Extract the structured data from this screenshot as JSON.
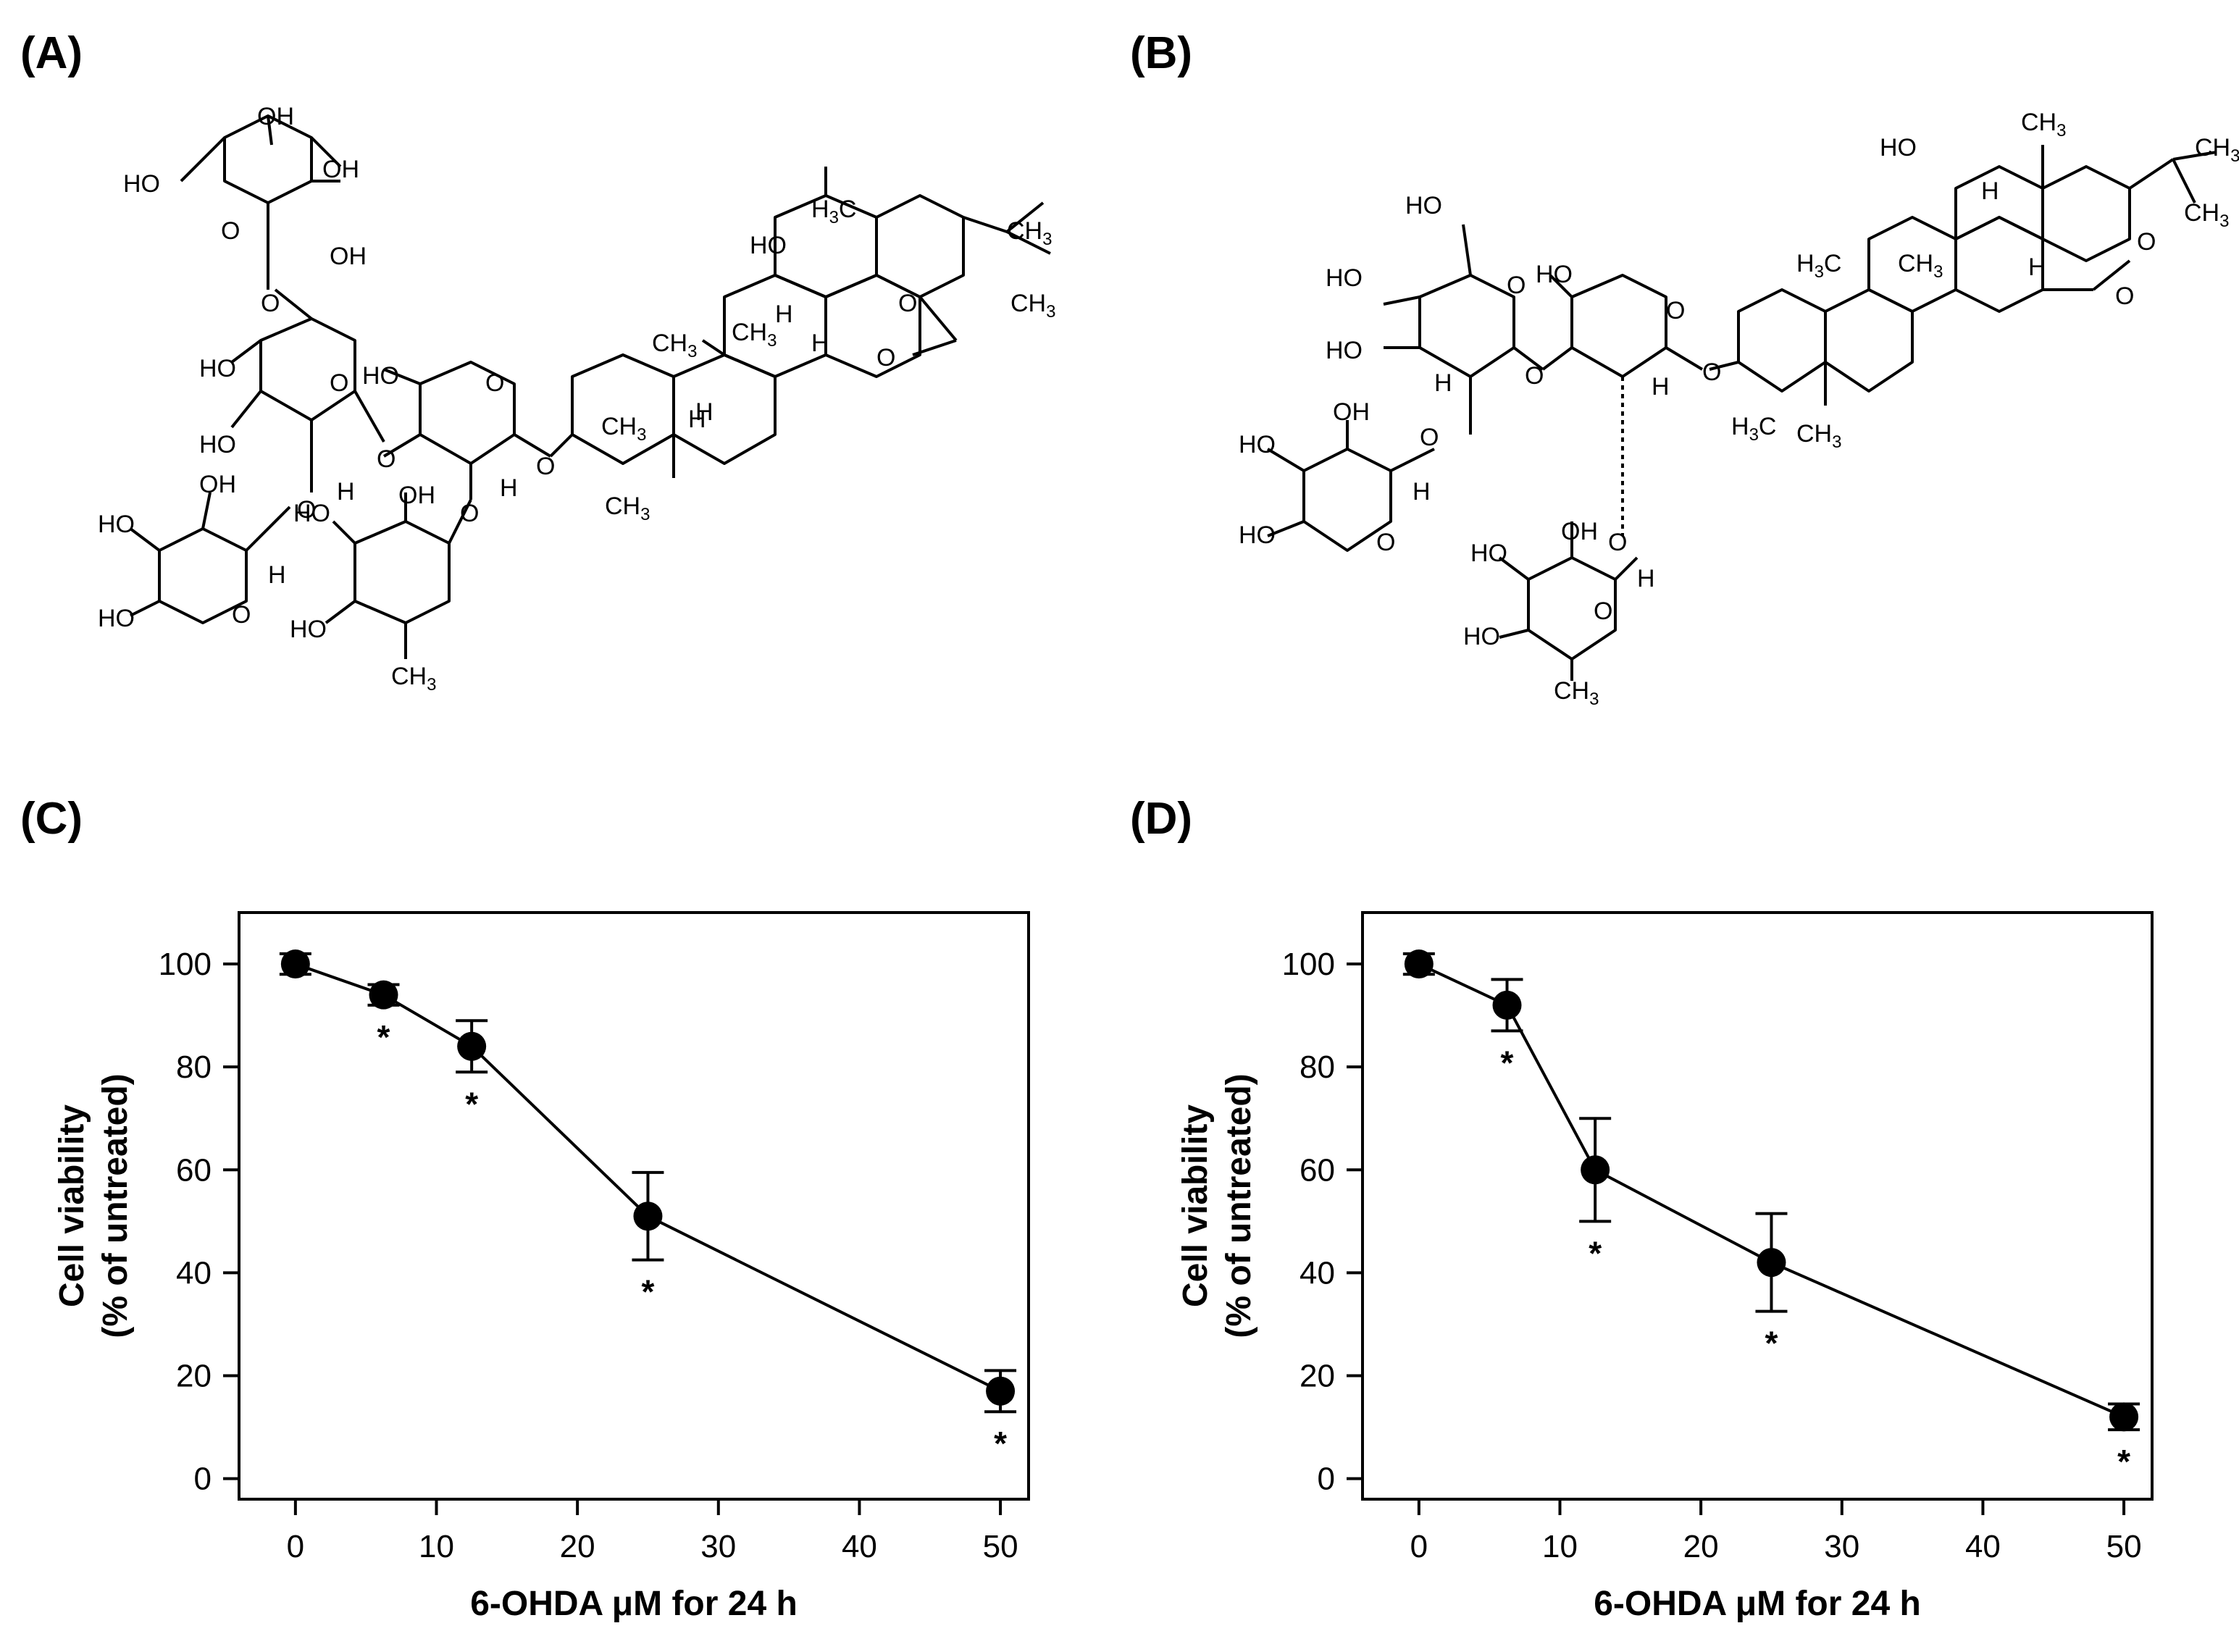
{
  "panels": {
    "A": "(A)",
    "B": "(B)",
    "C": "(C)",
    "D": "(D)"
  },
  "structures": {
    "A_labels": [
      "OH",
      "OH",
      "HO",
      "OH",
      "O",
      "O",
      "HO",
      "HO",
      "O",
      "HO",
      "O",
      "O",
      "OH",
      "H",
      "O",
      "H",
      "O",
      "OH",
      "HO",
      "HO",
      "O",
      "H",
      "O",
      "HO",
      "HO",
      "CH3",
      "CH3",
      "HO",
      "H3C",
      "H",
      "H",
      "O",
      "CH3",
      "CH3",
      "O",
      "CH3",
      "H",
      "CH3",
      "H",
      "CH3"
    ],
    "B_labels": [
      "HO",
      "CH3",
      "CH3",
      "CH3",
      "H",
      "O",
      "HO",
      "H",
      "H3C",
      "CH3",
      "O",
      "HO",
      "HO",
      "O",
      "HO",
      "O",
      "O",
      "H",
      "H",
      "HO",
      "OH",
      "O",
      "H3C",
      "CH3",
      "HO",
      "O",
      "H",
      "HO",
      "OH",
      "H",
      "HO",
      "O",
      "HO",
      "CH3"
    ]
  },
  "chart_data": [
    {
      "type": "line",
      "panel": "(C)",
      "x": [
        0,
        6.25,
        12.5,
        25,
        50
      ],
      "y": [
        100,
        94,
        84,
        51,
        17
      ],
      "err": [
        2,
        2,
        5,
        8.5,
        4
      ],
      "significant": [
        false,
        true,
        true,
        true,
        true
      ],
      "sig_marker": "*",
      "xlabel": "6-OHDA μM for 24 h",
      "ylabel_line1": "Cell viability",
      "ylabel_line2": "(% of untreated)",
      "xlim": [
        -4,
        52
      ],
      "ylim": [
        -4,
        110
      ],
      "xticks": [
        0,
        10,
        20,
        30,
        40,
        50
      ],
      "yticks": [
        0,
        20,
        40,
        60,
        80,
        100
      ],
      "grid": false,
      "legend": "none"
    },
    {
      "type": "line",
      "panel": "(D)",
      "x": [
        0,
        6.25,
        12.5,
        25,
        50
      ],
      "y": [
        100,
        92,
        60,
        42,
        12
      ],
      "err": [
        2,
        5,
        10,
        9.5,
        2.5
      ],
      "significant": [
        false,
        true,
        true,
        true,
        true
      ],
      "sig_marker": "*",
      "xlabel": "6-OHDA μM for 24 h",
      "ylabel_line1": "Cell viability",
      "ylabel_line2": "(% of untreated)",
      "xlim": [
        -4,
        52
      ],
      "ylim": [
        -4,
        110
      ],
      "xticks": [
        0,
        10,
        20,
        30,
        40,
        50
      ],
      "yticks": [
        0,
        20,
        40,
        60,
        80,
        100
      ],
      "grid": false,
      "legend": "none"
    }
  ]
}
